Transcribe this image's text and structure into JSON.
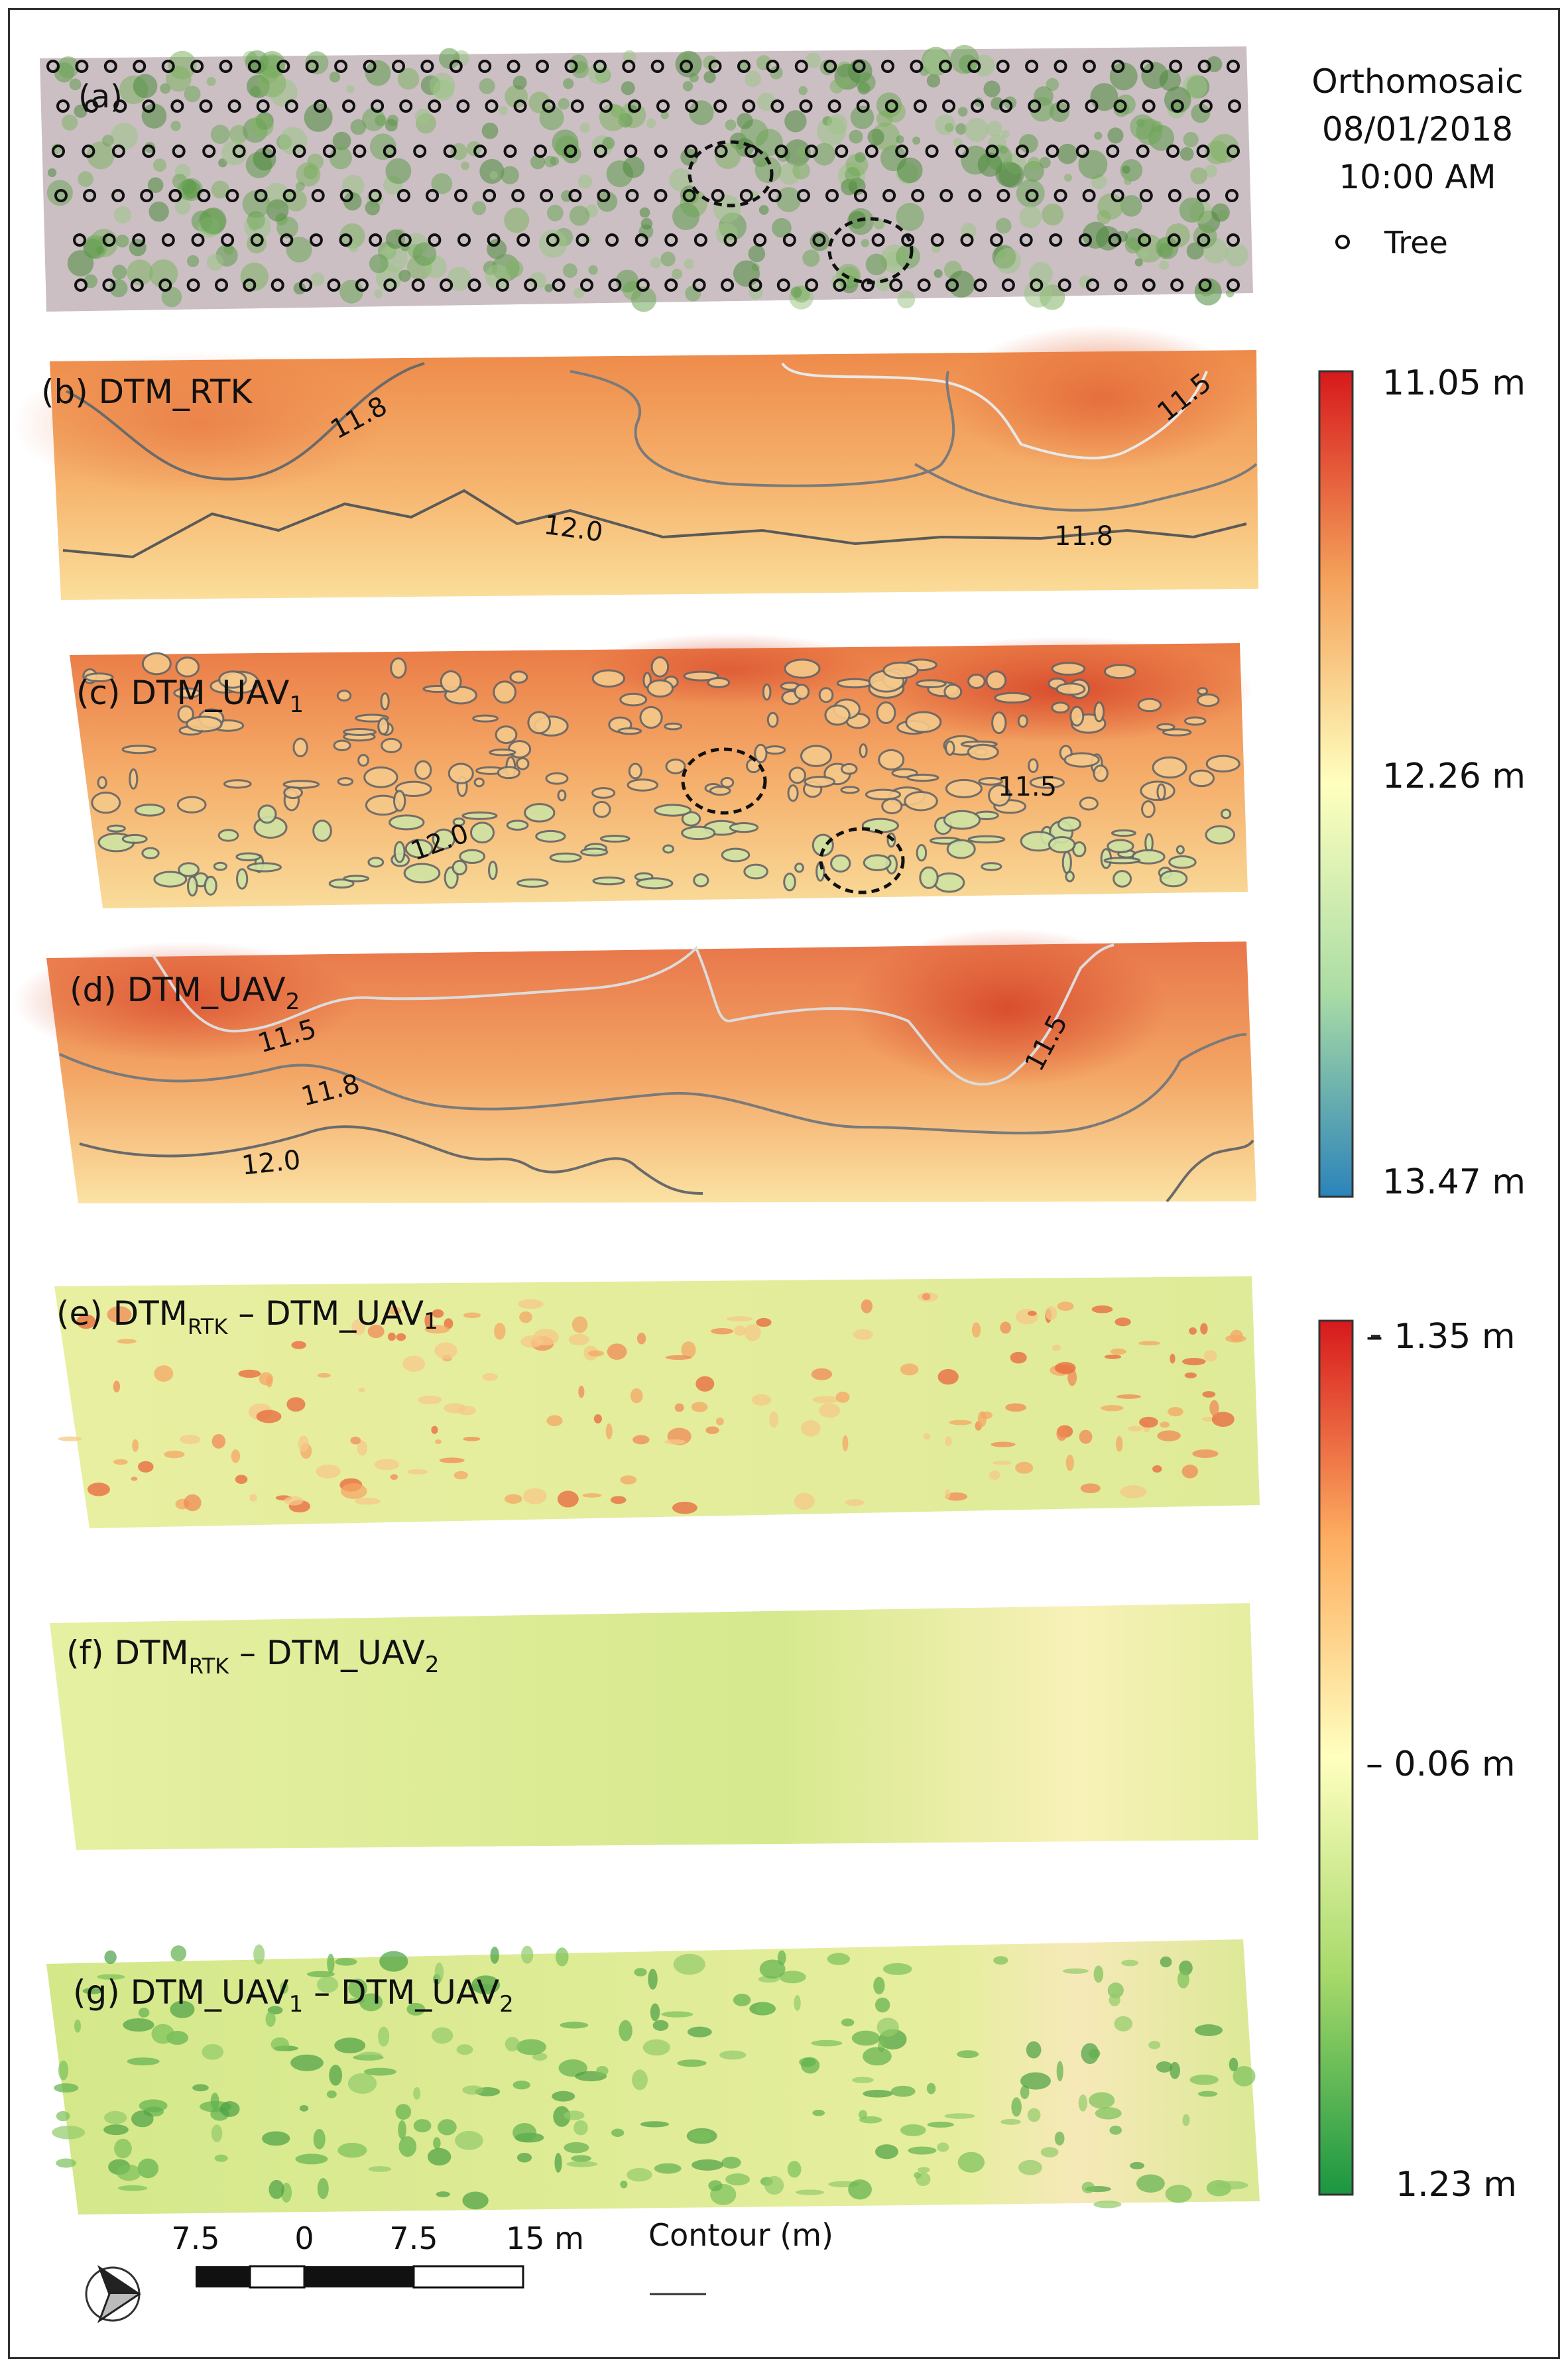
{
  "legend_a": {
    "title_line1": "Orthomosaic",
    "title_line2": "08/01/2018",
    "title_line3": "10:00 AM",
    "tree_label": "Tree"
  },
  "panels": {
    "a": {
      "label": "(a)"
    },
    "b": {
      "label": "(b) DTM_RTK",
      "contours": [
        "11.8",
        "11.5",
        "12.0",
        "11.8"
      ]
    },
    "c": {
      "label_prefix": "(c) DTM_UAV",
      "label_sub": "1",
      "contours": [
        "11.5",
        "12.0"
      ]
    },
    "d": {
      "label_prefix": "(d) DTM_UAV",
      "label_sub": "2",
      "contours": [
        "11.5",
        "11.8",
        "12.0",
        "11.5"
      ]
    },
    "e": {
      "label_prefix": "(e)  DTM",
      "label_sub": "RTK",
      "label_suffix": " – DTM_UAV",
      "label_sub2": "1"
    },
    "f": {
      "label_prefix": "(f) DTM",
      "label_sub": "RTK",
      "label_suffix": " –  DTM_UAV",
      "label_sub2": "2"
    },
    "g": {
      "label_prefix": "(g) DTM_UAV",
      "label_sub": "1",
      "label_mid": " – DTM_UAV",
      "label_sub2": "2"
    }
  },
  "elevation_legend": {
    "top": "11.05 m",
    "mid": "12.26 m",
    "bottom": "13.47 m",
    "colors": [
      "#d7191c",
      "#f4a15a",
      "#ffffbf",
      "#abdda4",
      "#2b83ba"
    ]
  },
  "difference_legend": {
    "top": "– 1.35 m",
    "mid": "– 0.06 m",
    "bottom": "1.23 m",
    "colors": [
      "#d7191c",
      "#fdae61",
      "#ffffbf",
      "#a6d96a",
      "#1a9641"
    ]
  },
  "scale_bar": {
    "ticks": [
      "7.5",
      "0",
      "7.5",
      "15 m"
    ]
  },
  "contour_legend": {
    "label": "Contour (m)"
  },
  "colors": {
    "contour_dark": "#5a5a5a",
    "contour_light": "#e8e8e8"
  }
}
